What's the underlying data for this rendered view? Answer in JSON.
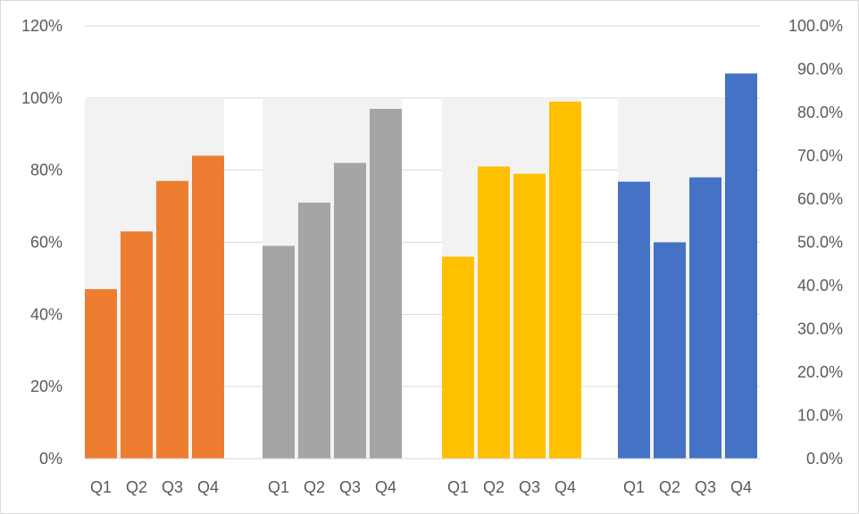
{
  "chart_data": {
    "type": "bar",
    "title": "",
    "xlabel": "",
    "ylabel": "",
    "legend": "none",
    "grid": true,
    "left_axis": {
      "ylim": [
        0,
        120
      ],
      "ticks": [
        0,
        20,
        40,
        60,
        80,
        100,
        120
      ],
      "tick_labels": [
        "0%",
        "20%",
        "40%",
        "60%",
        "80%",
        "100%",
        "120%"
      ]
    },
    "right_axis": {
      "ylim": [
        0,
        100
      ],
      "ticks": [
        0,
        10,
        20,
        30,
        40,
        50,
        60,
        70,
        80,
        90,
        100
      ],
      "tick_labels": [
        "0.0%",
        "10.0%",
        "20.0%",
        "30.0%",
        "40.0%",
        "50.0%",
        "60.0%",
        "70.0%",
        "80.0%",
        "90.0%",
        "100.0%"
      ]
    },
    "background_bar_value": 100,
    "groups": [
      {
        "categories": [
          "Q1",
          "Q2",
          "Q3",
          "Q4"
        ],
        "values": [
          47,
          63,
          77,
          84
        ],
        "axis": "left",
        "color": "#ed7d31"
      },
      {
        "categories": [
          "Q1",
          "Q2",
          "Q3",
          "Q4"
        ],
        "values": [
          59,
          71,
          82,
          97
        ],
        "axis": "left",
        "color": "#a5a5a5"
      },
      {
        "categories": [
          "Q1",
          "Q2",
          "Q3",
          "Q4"
        ],
        "values": [
          56,
          81,
          79,
          99
        ],
        "axis": "left",
        "color": "#ffc000"
      },
      {
        "categories": [
          "Q1",
          "Q2",
          "Q3",
          "Q4"
        ],
        "values": [
          64.0,
          50.0,
          65.0,
          89.0
        ],
        "axis": "right",
        "color": "#4472c4"
      }
    ],
    "colors": {
      "background_bar": "#f2f2f2",
      "gridline": "#d9d9d9",
      "tick_text": "#595959"
    }
  }
}
